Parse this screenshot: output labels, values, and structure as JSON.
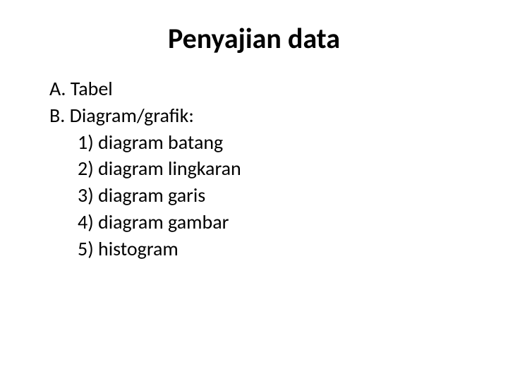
{
  "slide": {
    "title": "Penyajian data",
    "items": {
      "a": "A. Tabel",
      "b": "B. Diagram/grafik:",
      "b1": "1) diagram batang",
      "b2": "2) diagram lingkaran",
      "b3": "3) diagram garis",
      "b4": "4) diagram gambar",
      "b5": "5) histogram"
    }
  },
  "style": {
    "background_color": "#ffffff",
    "text_color": "#000000",
    "title_fontsize": 40,
    "body_fontsize": 28,
    "font_family": "Calibri, Segoe UI, Arial, sans-serif"
  }
}
